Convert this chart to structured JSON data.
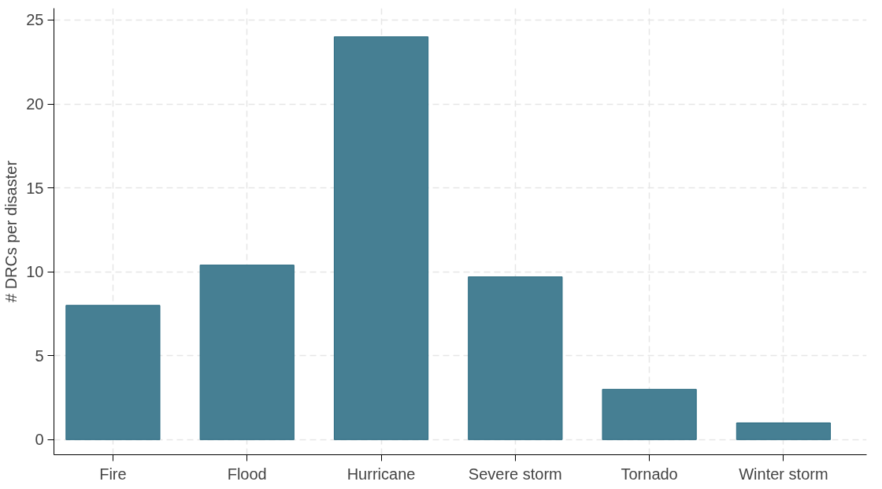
{
  "chart_data": {
    "type": "bar",
    "ylabel": "# DRCs per disaster",
    "categories": [
      "Fire",
      "Flood",
      "Hurricane",
      "Severe storm",
      "Tornado",
      "Winter storm"
    ],
    "values": [
      8,
      10.4,
      24,
      9.7,
      3,
      1
    ],
    "color": "#467f93",
    "ylim": [
      -0.9,
      25.7
    ],
    "yticks": [
      0,
      5,
      10,
      15,
      20,
      25
    ],
    "grid": true
  }
}
